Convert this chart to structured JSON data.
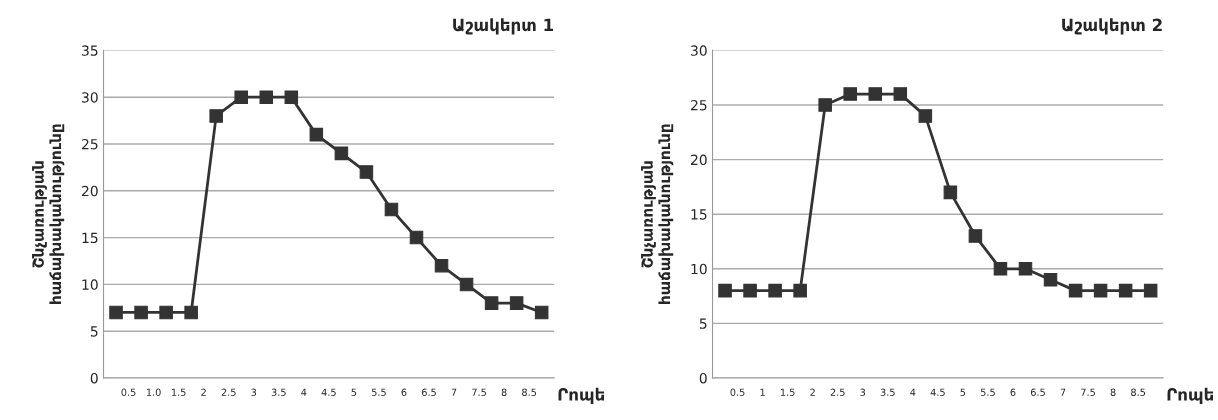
{
  "chart_data": [
    {
      "type": "line",
      "title": "Աշակերտ 1",
      "ylabel": "Շնչառության\nհաճախականությունը",
      "xlabel": "Րոպե",
      "x": [
        0.25,
        0.75,
        1.25,
        1.75,
        2.25,
        2.75,
        3.25,
        3.75,
        4.25,
        4.75,
        5.25,
        5.75,
        6.25,
        6.75,
        7.25,
        7.75,
        8.25,
        8.75
      ],
      "series": [
        {
          "color": "#333333",
          "values": [
            7,
            7,
            7,
            7,
            28,
            30,
            30,
            30,
            26,
            24,
            22,
            18,
            15,
            12,
            10,
            8,
            8,
            7
          ]
        }
      ],
      "xlim": [
        0,
        9
      ],
      "xticks": [
        0.5,
        {
          "value": 1,
          "label": "1.0"
        },
        1.5,
        2,
        2.5,
        3,
        3.5,
        4,
        4.5,
        5,
        5.5,
        6,
        6.5,
        7,
        7.5,
        8,
        8.5
      ],
      "ylim": [
        0,
        35
      ],
      "yticks": [
        0,
        5,
        10,
        15,
        20,
        25,
        30,
        35
      ],
      "grid": "y",
      "marker": "square",
      "line_style": "solid"
    },
    {
      "type": "line",
      "title": "Աշակերտ 2",
      "ylabel": "Շնչառության\nհաճախականությունը",
      "xlabel": "Րոպե",
      "x": [
        0.25,
        0.75,
        1.25,
        1.75,
        2.25,
        2.75,
        3.25,
        3.75,
        4.25,
        4.75,
        5.25,
        5.75,
        6.25,
        6.75,
        7.25,
        7.75,
        8.25,
        8.75
      ],
      "series": [
        {
          "color": "#333333",
          "values": [
            8,
            8,
            8,
            8,
            25,
            26,
            26,
            26,
            24,
            17,
            13,
            10,
            10,
            9,
            8,
            8,
            8,
            8
          ]
        }
      ],
      "xlim": [
        0,
        9
      ],
      "xticks": [
        0.5,
        1,
        1.5,
        2,
        2.5,
        3,
        3.5,
        4,
        4.5,
        5,
        5.5,
        6,
        6.5,
        7,
        7.5,
        8,
        8.5
      ],
      "ylim": [
        0,
        30
      ],
      "yticks": [
        0,
        5,
        10,
        15,
        20,
        25,
        30
      ],
      "grid": "y",
      "marker": "square",
      "line_style": "solid"
    }
  ]
}
